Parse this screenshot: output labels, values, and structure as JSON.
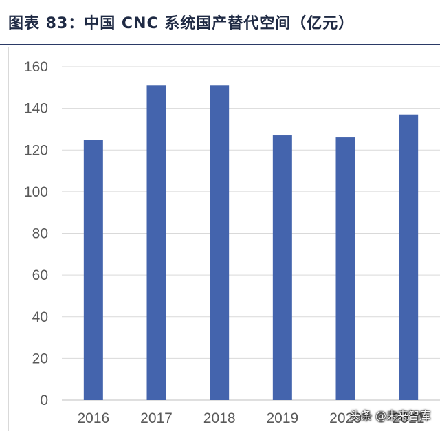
{
  "title": "图表 83：中国 CNC 系统国产替代空间（亿元）",
  "watermark": "头条 @未来智库",
  "colors": {
    "bar": "#4464ad",
    "grid": "#d9d9d9",
    "axis": "#bfbfbf",
    "tick": "#595959",
    "title": "#1f2a44"
  },
  "chart_data": {
    "type": "bar",
    "categories": [
      "2016",
      "2017",
      "2018",
      "2019",
      "2020",
      "2021"
    ],
    "values": [
      125,
      151,
      151,
      127,
      126,
      137
    ],
    "title": "",
    "xlabel": "",
    "ylabel": "",
    "ylim": [
      0,
      160
    ],
    "yticks": [
      0,
      20,
      40,
      60,
      80,
      100,
      120,
      140,
      160
    ],
    "grid": true,
    "legend": "none"
  }
}
